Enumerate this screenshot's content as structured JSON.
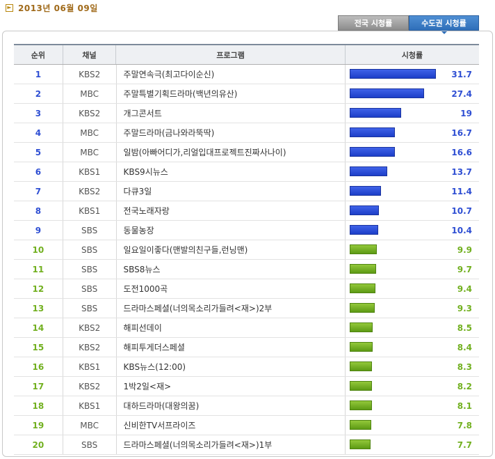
{
  "header": {
    "date": "2013년 06월 09일"
  },
  "tabs": [
    {
      "label": "전국 시청률",
      "active": false
    },
    {
      "label": "수도권 시청률",
      "active": true
    }
  ],
  "table": {
    "columns": [
      "순위",
      "채널",
      "프로그램",
      "시청률"
    ],
    "rows": [
      {
        "rank": "1",
        "channel": "KBS2",
        "program": "주말연속극(최고다이순신)",
        "rating": "31.7",
        "tier": "top"
      },
      {
        "rank": "2",
        "channel": "MBC",
        "program": "주말특별기획드라마(백년의유산)",
        "rating": "27.4",
        "tier": "top"
      },
      {
        "rank": "3",
        "channel": "KBS2",
        "program": "개그콘서트",
        "rating": "19",
        "tier": "top"
      },
      {
        "rank": "4",
        "channel": "MBC",
        "program": "주말드라마(금나와라뚝딱)",
        "rating": "16.7",
        "tier": "top"
      },
      {
        "rank": "5",
        "channel": "MBC",
        "program": "일밤(아빠어디가,리얼입대프로젝트진짜사나이)",
        "rating": "16.6",
        "tier": "top"
      },
      {
        "rank": "6",
        "channel": "KBS1",
        "program": "KBS9시뉴스",
        "rating": "13.7",
        "tier": "top"
      },
      {
        "rank": "7",
        "channel": "KBS2",
        "program": "다큐3일",
        "rating": "11.4",
        "tier": "top"
      },
      {
        "rank": "8",
        "channel": "KBS1",
        "program": "전국노래자랑",
        "rating": "10.7",
        "tier": "top"
      },
      {
        "rank": "9",
        "channel": "SBS",
        "program": "동물농장",
        "rating": "10.4",
        "tier": "top"
      },
      {
        "rank": "10",
        "channel": "SBS",
        "program": "일요일이좋다(맨발의친구들,런닝맨)",
        "rating": "9.9",
        "tier": "rest"
      },
      {
        "rank": "11",
        "channel": "SBS",
        "program": "SBS8뉴스",
        "rating": "9.7",
        "tier": "rest"
      },
      {
        "rank": "12",
        "channel": "SBS",
        "program": "도전1000곡",
        "rating": "9.4",
        "tier": "rest"
      },
      {
        "rank": "13",
        "channel": "SBS",
        "program": "드라마스페셜(너의목소리가들려<재>)2부",
        "rating": "9.3",
        "tier": "rest"
      },
      {
        "rank": "14",
        "channel": "KBS2",
        "program": "해피선데이",
        "rating": "8.5",
        "tier": "rest"
      },
      {
        "rank": "15",
        "channel": "KBS2",
        "program": "해피투게더스페셜",
        "rating": "8.4",
        "tier": "rest"
      },
      {
        "rank": "16",
        "channel": "KBS1",
        "program": "KBS뉴스(12:00)",
        "rating": "8.3",
        "tier": "rest"
      },
      {
        "rank": "17",
        "channel": "KBS2",
        "program": "1박2일<재>",
        "rating": "8.2",
        "tier": "rest"
      },
      {
        "rank": "18",
        "channel": "KBS1",
        "program": "대하드라마(대왕의꿈)",
        "rating": "8.1",
        "tier": "rest"
      },
      {
        "rank": "19",
        "channel": "MBC",
        "program": "신비한TV서프라이즈",
        "rating": "7.8",
        "tier": "rest"
      },
      {
        "rank": "20",
        "channel": "SBS",
        "program": "드라마스페셜(너의목소리가들려<재>)1부",
        "rating": "7.7",
        "tier": "rest"
      }
    ]
  },
  "colors": {
    "top": "#2f4fd3",
    "rest": "#72b020",
    "date": "#a06a1a",
    "active_tab": "#2f6fb9"
  }
}
